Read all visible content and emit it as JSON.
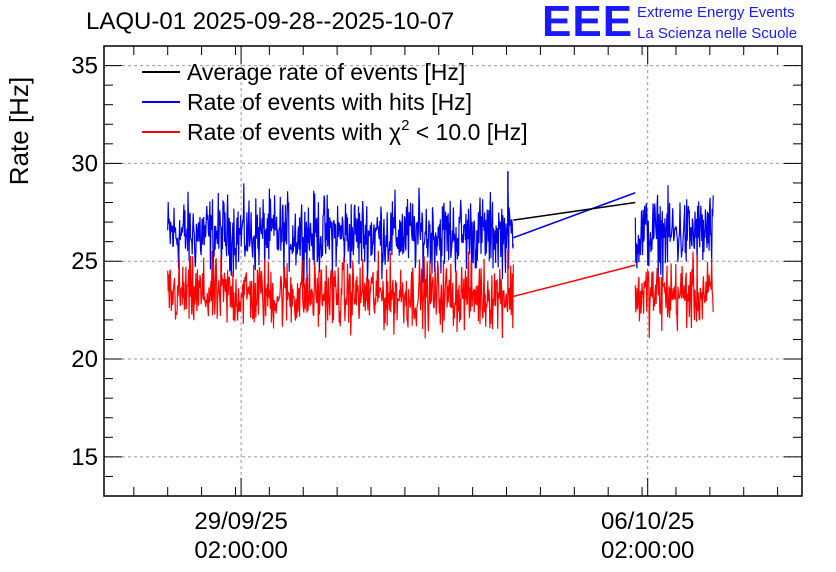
{
  "header": {
    "title": "LAQU-01 2025-09-28--2025-10-07",
    "logo_text": "EEE",
    "logo_line1": "Extreme Energy Events",
    "logo_line2": "La Scienza nelle Scuole",
    "logo_color": "#1a1aff"
  },
  "chart_data": {
    "type": "line",
    "title": "LAQU-01 2025-09-28--2025-10-07",
    "ylabel": "Rate [Hz]",
    "xlabel": "",
    "ylim": [
      13,
      36
    ],
    "y_ticks": [
      15,
      20,
      25,
      30,
      35
    ],
    "x_unit": "days since 2025-09-28 00:00",
    "xlim": [
      -0.94,
      9.36
    ],
    "x_ticks": [
      {
        "x": 1.083,
        "label_line1": "29/09/25",
        "label_line2": "02:00:00"
      },
      {
        "x": 7.083,
        "label_line1": "06/10/25",
        "label_line2": "02:00:00"
      }
    ],
    "grid": true,
    "legend_position": "top-left",
    "data_segments": [
      {
        "x_start": 0.0,
        "x_end": 5.1
      },
      {
        "x_start": 6.9,
        "x_end": 8.05
      }
    ],
    "series": [
      {
        "name": "Rate of events with hits [Hz]",
        "color": "#0000ee",
        "mean": 26.4,
        "spread": 1.2,
        "peak": 29.6,
        "gap_bridge": [
          [
            5.1,
            26.2
          ],
          [
            6.9,
            28.5
          ]
        ]
      },
      {
        "name": "Rate of events with χ² < 10.0 [Hz]",
        "color": "#ff0000",
        "mean": 23.3,
        "spread": 1.1,
        "peak": 25.6,
        "gap_bridge": [
          [
            5.1,
            23.2
          ],
          [
            6.9,
            24.8
          ]
        ]
      },
      {
        "name": "Average rate of events [Hz]",
        "color": "#000000",
        "mean": 26.4,
        "spread": 0,
        "gap_bridge": [
          [
            5.1,
            27.1
          ],
          [
            6.9,
            28.0
          ]
        ]
      }
    ],
    "legend": [
      {
        "label": "Average rate of events [Hz]",
        "color": "#000000"
      },
      {
        "label": "Rate of events with hits [Hz]",
        "color": "#0000ee"
      },
      {
        "label": "Rate of events with χ² < 10.0 [Hz]",
        "color": "#ff0000"
      }
    ]
  }
}
